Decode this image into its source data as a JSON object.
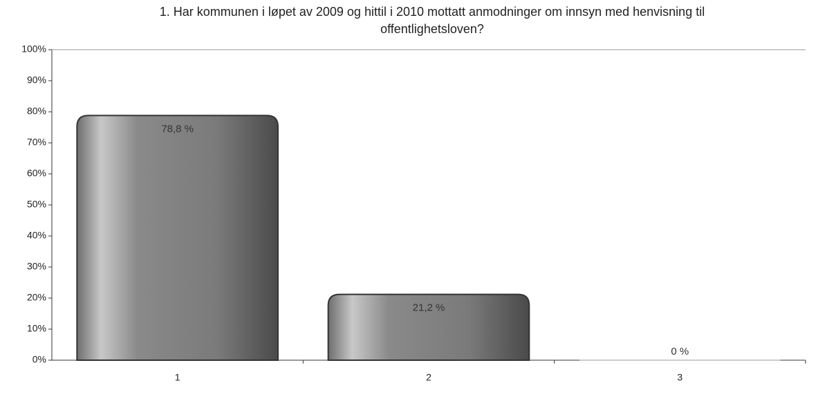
{
  "chart_data": {
    "type": "bar",
    "title": [
      "1. Har kommunen i løpet av 2009 og hittil i 2010 mottatt anmodninger om innsyn med henvisning til",
      "offentlighetsloven?"
    ],
    "categories": [
      "1",
      "2",
      "3"
    ],
    "values": [
      78.8,
      21.2,
      0
    ],
    "value_labels": [
      "78,8 %",
      "21,2 %",
      "0 %"
    ],
    "color": "#9a9a9a",
    "ylim": [
      0,
      100
    ],
    "yticks": [
      {
        "value": 0,
        "label": "0%"
      },
      {
        "value": 10,
        "label": "10%"
      },
      {
        "value": 20,
        "label": "20%"
      },
      {
        "value": 30,
        "label": "30%"
      },
      {
        "value": 40,
        "label": "40%"
      },
      {
        "value": 50,
        "label": "50%"
      },
      {
        "value": 60,
        "label": "60%"
      },
      {
        "value": 70,
        "label": "70%"
      },
      {
        "value": 80,
        "label": "80%"
      },
      {
        "value": 90,
        "label": "90%"
      },
      {
        "value": 100,
        "label": "100%"
      }
    ],
    "grid": false
  }
}
